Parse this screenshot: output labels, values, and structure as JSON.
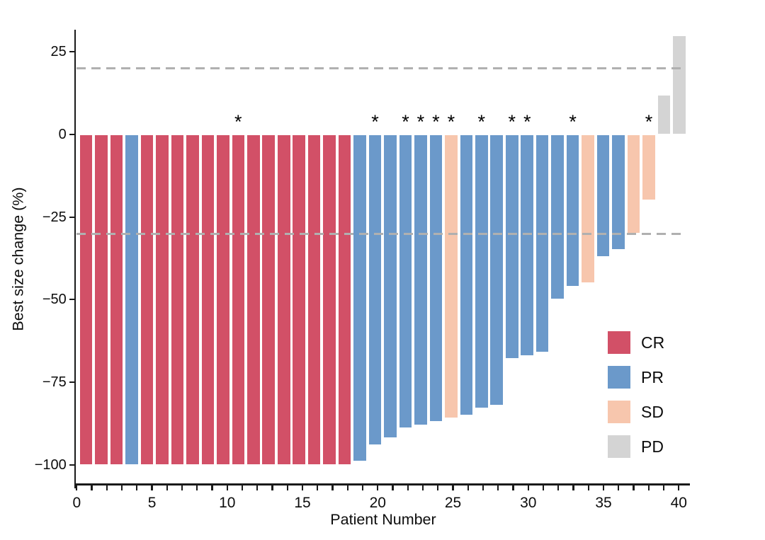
{
  "chart_data": {
    "type": "bar",
    "chart_kind": "waterfall",
    "title": "",
    "xlabel": "Patient Number",
    "ylabel": "Best size change (%)",
    "xlim": [
      0,
      40.7
    ],
    "ylim": [
      -107,
      32
    ],
    "grid": false,
    "legend_position": "inside-right",
    "annotation_symbol": "*",
    "yticks": [
      {
        "value": 25,
        "label": "25"
      },
      {
        "value": 0,
        "label": "0"
      },
      {
        "value": -25,
        "label": "−25"
      },
      {
        "value": -50,
        "label": "−50"
      },
      {
        "value": -75,
        "label": "−75"
      },
      {
        "value": -100,
        "label": "−100"
      }
    ],
    "xticks_major": [
      {
        "value": 0,
        "label": "0"
      },
      {
        "value": 5,
        "label": "5"
      },
      {
        "value": 10,
        "label": "10"
      },
      {
        "value": 15,
        "label": "15"
      },
      {
        "value": 20,
        "label": "20"
      },
      {
        "value": 25,
        "label": "25"
      },
      {
        "value": 30,
        "label": "30"
      },
      {
        "value": 35,
        "label": "35"
      },
      {
        "value": 40,
        "label": "40"
      }
    ],
    "xticks_minor": {
      "from": 0,
      "to": 40,
      "step": 1
    },
    "reference_lines": [
      {
        "y": 20,
        "style": "dashed",
        "color": "#b0b0b0"
      },
      {
        "y": -30,
        "style": "dashed",
        "color": "#b0b0b0"
      }
    ],
    "colors": {
      "CR": "#d25067",
      "PR": "#6b99ca",
      "SD": "#f7c6ad",
      "PD": "#d4d4d4"
    },
    "legend_entries": [
      {
        "key": "CR",
        "label": "CR"
      },
      {
        "key": "PR",
        "label": "PR"
      },
      {
        "key": "SD",
        "label": "SD"
      },
      {
        "key": "PD",
        "label": "PD"
      }
    ],
    "patients": [
      {
        "patient": 1,
        "value": -100,
        "response": "CR",
        "starred": false
      },
      {
        "patient": 2,
        "value": -100,
        "response": "CR",
        "starred": false
      },
      {
        "patient": 3,
        "value": -100,
        "response": "CR",
        "starred": false
      },
      {
        "patient": 4,
        "value": -100,
        "response": "PR",
        "starred": false
      },
      {
        "patient": 5,
        "value": -100,
        "response": "CR",
        "starred": false
      },
      {
        "patient": 6,
        "value": -100,
        "response": "CR",
        "starred": false
      },
      {
        "patient": 7,
        "value": -100,
        "response": "CR",
        "starred": false
      },
      {
        "patient": 8,
        "value": -100,
        "response": "CR",
        "starred": false
      },
      {
        "patient": 9,
        "value": -100,
        "response": "CR",
        "starred": false
      },
      {
        "patient": 10,
        "value": -100,
        "response": "CR",
        "starred": false
      },
      {
        "patient": 11,
        "value": -100,
        "response": "CR",
        "starred": true
      },
      {
        "patient": 12,
        "value": -100,
        "response": "CR",
        "starred": false
      },
      {
        "patient": 13,
        "value": -100,
        "response": "CR",
        "starred": false
      },
      {
        "patient": 14,
        "value": -100,
        "response": "CR",
        "starred": false
      },
      {
        "patient": 15,
        "value": -100,
        "response": "CR",
        "starred": false
      },
      {
        "patient": 16,
        "value": -100,
        "response": "CR",
        "starred": false
      },
      {
        "patient": 17,
        "value": -100,
        "response": "CR",
        "starred": false
      },
      {
        "patient": 18,
        "value": -100,
        "response": "CR",
        "starred": false
      },
      {
        "patient": 19,
        "value": -99,
        "response": "PR",
        "starred": false
      },
      {
        "patient": 20,
        "value": -94,
        "response": "PR",
        "starred": true
      },
      {
        "patient": 21,
        "value": -92,
        "response": "PR",
        "starred": false
      },
      {
        "patient": 22,
        "value": -89,
        "response": "PR",
        "starred": true
      },
      {
        "patient": 23,
        "value": -88,
        "response": "PR",
        "starred": true
      },
      {
        "patient": 24,
        "value": -87,
        "response": "PR",
        "starred": true
      },
      {
        "patient": 25,
        "value": -86,
        "response": "SD",
        "starred": true
      },
      {
        "patient": 26,
        "value": -85,
        "response": "PR",
        "starred": false
      },
      {
        "patient": 27,
        "value": -83,
        "response": "PR",
        "starred": true
      },
      {
        "patient": 28,
        "value": -82,
        "response": "PR",
        "starred": false
      },
      {
        "patient": 29,
        "value": -68,
        "response": "PR",
        "starred": true
      },
      {
        "patient": 30,
        "value": -67,
        "response": "PR",
        "starred": true
      },
      {
        "patient": 31,
        "value": -66,
        "response": "PR",
        "starred": false
      },
      {
        "patient": 32,
        "value": -50,
        "response": "PR",
        "starred": false
      },
      {
        "patient": 33,
        "value": -46,
        "response": "PR",
        "starred": true
      },
      {
        "patient": 34,
        "value": -45,
        "response": "SD",
        "starred": false
      },
      {
        "patient": 35,
        "value": -37,
        "response": "PR",
        "starred": false
      },
      {
        "patient": 36,
        "value": -35,
        "response": "PR",
        "starred": false
      },
      {
        "patient": 37,
        "value": -30,
        "response": "SD",
        "starred": false
      },
      {
        "patient": 38,
        "value": -20,
        "response": "SD",
        "starred": true
      },
      {
        "patient": 39,
        "value": 12,
        "response": "PD",
        "starred": false
      },
      {
        "patient": 40,
        "value": 30,
        "response": "PD",
        "starred": false
      }
    ]
  }
}
